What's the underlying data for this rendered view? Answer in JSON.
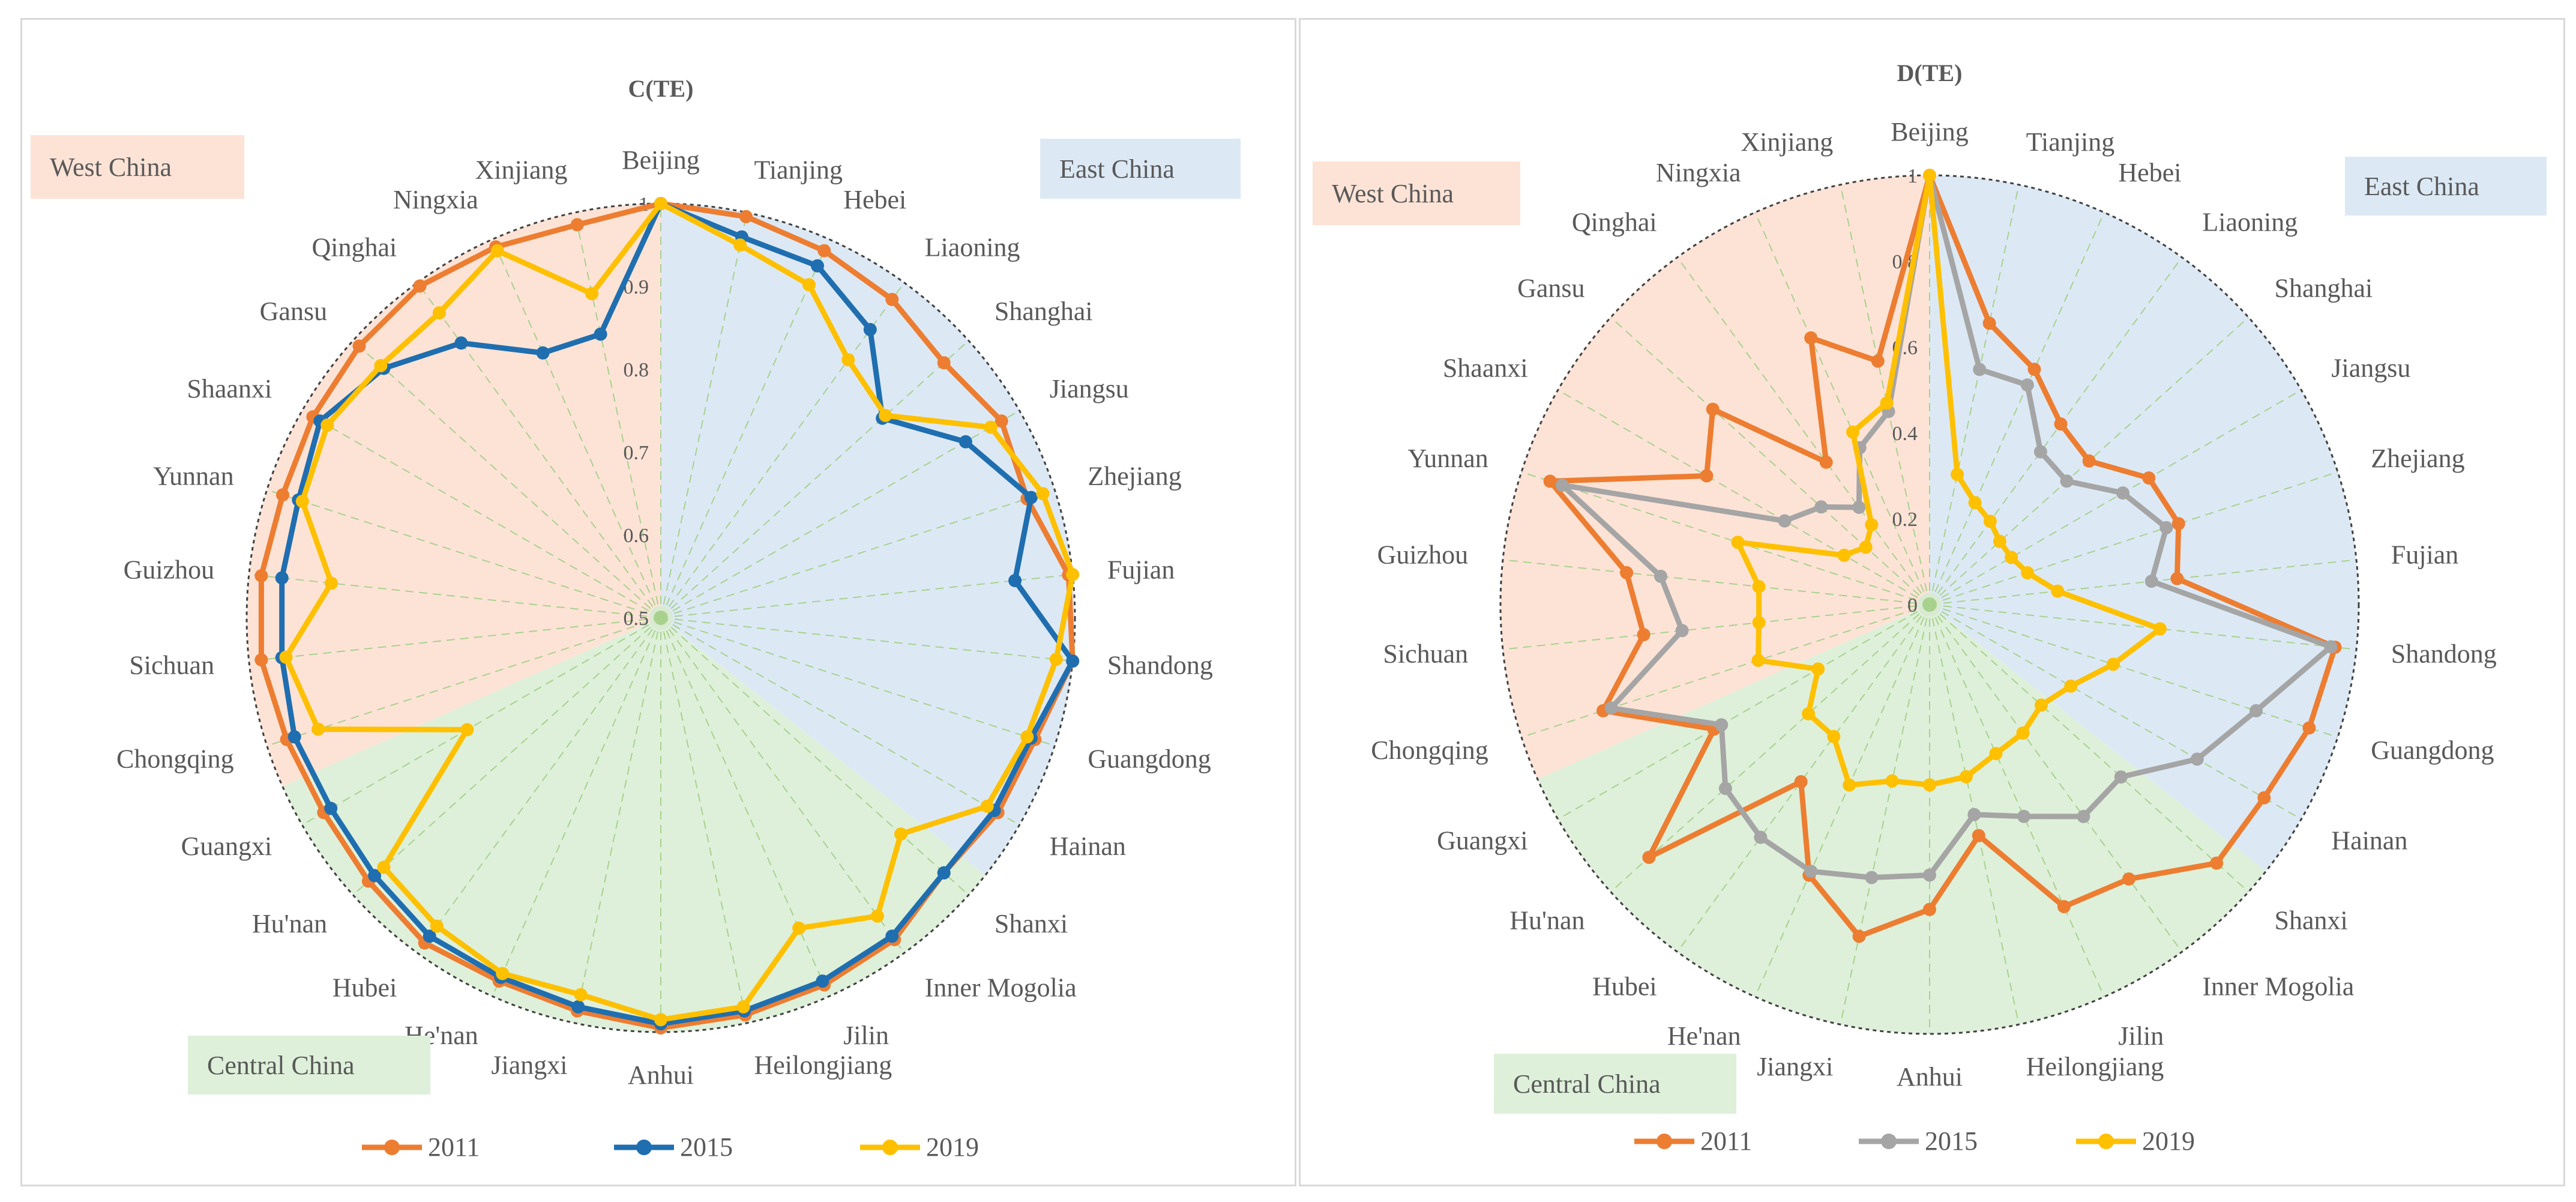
{
  "provinces": [
    "Beijing",
    "Tianjing",
    "Hebei",
    "Liaoning",
    "Shanghai",
    "Jiangsu",
    "Zhejiang",
    "Fujian",
    "Shandong",
    "Guangdong",
    "Hainan",
    "Shanxi",
    "Inner Mogolia",
    "Jilin",
    "Heilongjiang",
    "Anhui",
    "Jiangxi",
    "He'nan",
    "Hubei",
    "Hu'nan",
    "Guangxi",
    "Chongqing",
    "Sichuan",
    "Guizhou",
    "Yunnan",
    "Shaanxi",
    "Gansu",
    "Qinghai",
    "Ningxia",
    "Xinjiang"
  ],
  "regions": {
    "east": {
      "label": "East China",
      "color": "#dce9f5",
      "from": 0,
      "to": 10.7
    },
    "central": {
      "label": "Central China",
      "color": "#def0da",
      "from": 10.7,
      "to": 20.5
    },
    "west": {
      "label": "West China",
      "color": "#fde3d6",
      "from": 20.5,
      "to": 30
    }
  },
  "chart_data": [
    {
      "type": "radar",
      "title": "C(TE)",
      "range": [
        0.5,
        1
      ],
      "ticks": [
        "0.5",
        "0.6",
        "0.7",
        "0.8",
        "0.9",
        "1"
      ],
      "tick_values": [
        0.5,
        0.6,
        0.7,
        0.8,
        0.9,
        1
      ],
      "series": [
        {
          "name": "2011",
          "color": "#ed7d31",
          "values": [
            1.0,
            0.995,
            0.985,
            0.975,
            0.96,
            0.975,
            0.965,
            0.995,
            1.0,
            0.975,
            0.97,
            0.96,
            0.98,
            0.985,
            0.99,
            0.995,
            0.985,
            0.98,
            0.985,
            0.975,
            0.97,
            0.975,
            0.985,
            0.985,
            0.98,
            0.985,
            0.99,
            0.995,
            0.99,
            0.985
          ]
        },
        {
          "name": "2015",
          "color": "#1f6eb0",
          "values": [
            1.0,
            0.97,
            0.965,
            0.93,
            0.86,
            0.925,
            0.97,
            0.93,
            1.0,
            0.97,
            0.965,
            0.96,
            0.975,
            0.98,
            0.985,
            0.99,
            0.98,
            0.975,
            0.975,
            0.965,
            0.96,
            0.965,
            0.96,
            0.96,
            0.96,
            0.975,
            0.95,
            0.91,
            0.85,
            0.85
          ]
        },
        {
          "name": "2019",
          "color": "#ffc000",
          "values": [
            1.0,
            0.96,
            0.94,
            0.885,
            0.865,
            0.96,
            0.985,
            1.0,
            0.98,
            0.965,
            0.955,
            0.89,
            0.945,
            0.91,
            0.98,
            0.985,
            0.965,
            0.97,
            0.96,
            0.95,
            0.77,
            0.935,
            0.955,
            0.9,
            0.955,
            0.965,
            0.955,
            0.955,
            0.985,
            0.9
          ]
        }
      ]
    },
    {
      "type": "radar",
      "title": "D(TE)",
      "range": [
        0,
        1
      ],
      "ticks": [
        "0",
        "0.2",
        "0.4",
        "0.6",
        "0.8",
        "1"
      ],
      "tick_values": [
        0,
        0.2,
        0.4,
        0.6,
        0.8,
        1
      ],
      "series": [
        {
          "name": "2011",
          "color": "#ed7d31",
          "values": [
            1.0,
            0.67,
            0.6,
            0.52,
            0.5,
            0.59,
            0.61,
            0.58,
            0.95,
            0.93,
            0.9,
            0.9,
            0.79,
            0.77,
            0.55,
            0.71,
            0.79,
            0.69,
            0.51,
            0.88,
            0.58,
            0.8,
            0.67,
            0.71,
            0.93,
            0.6,
            0.68,
            0.41,
            0.68,
            0.58
          ]
        },
        {
          "name": "2015",
          "color": "#a5a5a5",
          "values": [
            1.0,
            0.56,
            0.56,
            0.44,
            0.43,
            0.52,
            0.58,
            0.52,
            0.94,
            0.8,
            0.72,
            0.6,
            0.61,
            0.54,
            0.5,
            0.63,
            0.65,
            0.68,
            0.67,
            0.64,
            0.56,
            0.78,
            0.58,
            0.63,
            0.9,
            0.39,
            0.34,
            0.28,
            0.4,
            0.46
          ]
        },
        {
          "name": "2019",
          "color": "#ffc000",
          "values": [
            1.0,
            0.31,
            0.26,
            0.24,
            0.22,
            0.22,
            0.24,
            0.3,
            0.54,
            0.45,
            0.38,
            0.35,
            0.37,
            0.38,
            0.41,
            0.42,
            0.42,
            0.46,
            0.38,
            0.38,
            0.3,
            0.42,
            0.4,
            0.4,
            0.47,
            0.23,
            0.2,
            0.23,
            0.44,
            0.48
          ]
        }
      ]
    }
  ]
}
